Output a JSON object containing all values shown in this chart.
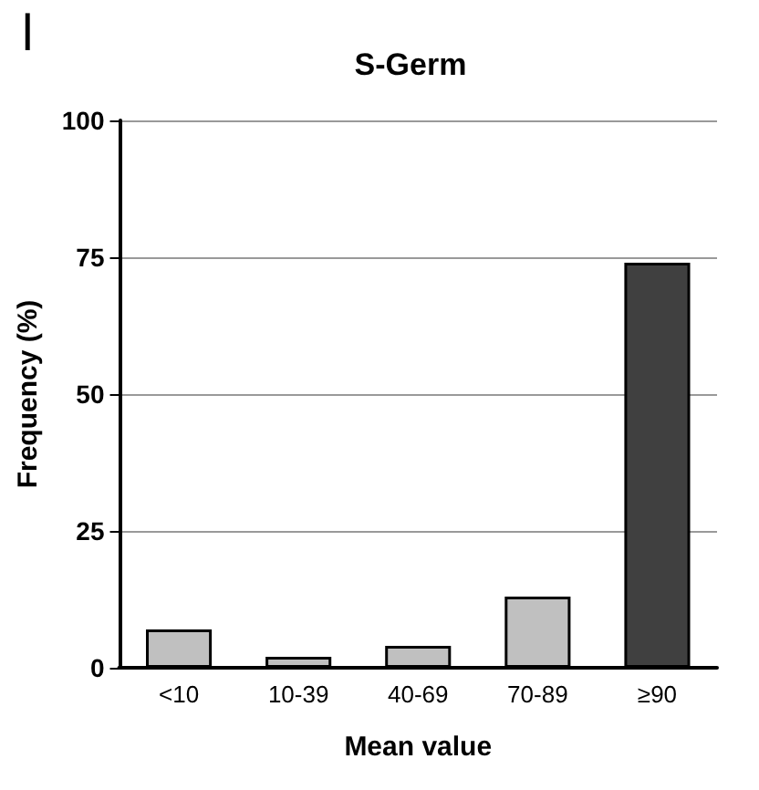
{
  "chart_data": {
    "type": "bar",
    "title": "S-Germ",
    "xlabel": "Mean value",
    "ylabel": "Frequency (%)",
    "annotations": [
      "l"
    ],
    "categories": [
      "<10",
      "10-39",
      "40-69",
      "70-89",
      "≥90"
    ],
    "values": [
      7,
      2,
      4,
      13,
      74
    ],
    "colors": [
      "#c0c0c0",
      "#c0c0c0",
      "#c0c0c0",
      "#c0c0c0",
      "#404040"
    ],
    "ylim": [
      0,
      100
    ],
    "yticks": [
      0,
      25,
      50,
      75,
      100
    ],
    "grid": "y"
  }
}
